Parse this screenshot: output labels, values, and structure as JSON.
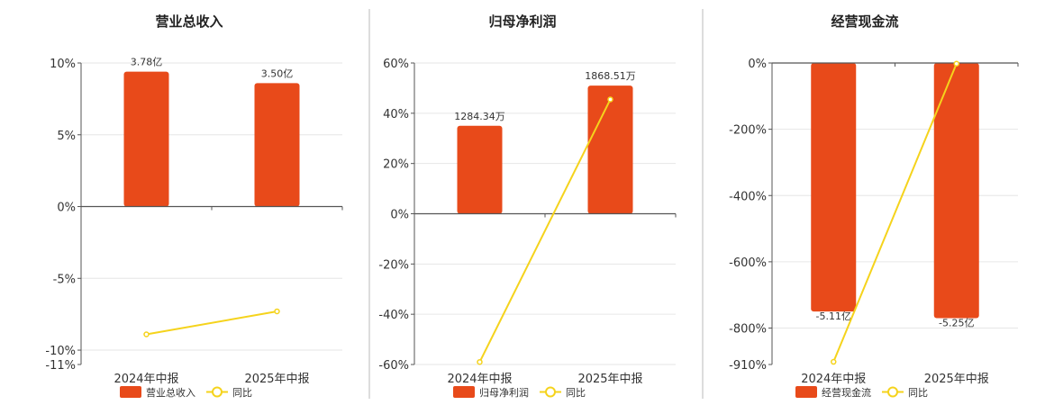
{
  "colors": {
    "bar": "#e84a1a",
    "line": "#f5d31c",
    "grid": "#e6e6e6",
    "axis": "#555555",
    "divider": "#bbbbbb"
  },
  "chart_data": [
    {
      "type": "bar",
      "title": "营业总收入",
      "categories": [
        "2024年中报",
        "2025年中报"
      ],
      "bar_series": {
        "name": "营业总收入",
        "data_labels": [
          "3.78亿",
          "3.50亿"
        ]
      },
      "line_series": {
        "name": "同比",
        "unit": "%",
        "values": [
          -8.9,
          -7.3
        ]
      },
      "y_axis": {
        "ticks": [
          10,
          5,
          0,
          -5,
          -10,
          -11
        ],
        "tick_labels": [
          "10%",
          "5%",
          "0%",
          "-5%",
          "-10%",
          "-11%"
        ],
        "ylim": [
          -11,
          10
        ],
        "gridlines": [
          10,
          5,
          0,
          -5,
          -10
        ]
      },
      "bar_tops": [
        9.4,
        8.6
      ],
      "legend": [
        "营业总收入",
        "同比"
      ],
      "legend_position": "bottom",
      "grid": true
    },
    {
      "type": "bar",
      "title": "归母净利润",
      "categories": [
        "2024年中报",
        "2025年中报"
      ],
      "bar_series": {
        "name": "归母净利润",
        "data_labels": [
          "1284.34万",
          "1868.51万"
        ]
      },
      "line_series": {
        "name": "同比",
        "unit": "%",
        "values": [
          -59,
          45.5
        ]
      },
      "y_axis": {
        "ticks": [
          60,
          40,
          20,
          0,
          -20,
          -40,
          -60
        ],
        "tick_labels": [
          "60%",
          "40%",
          "20%",
          "0%",
          "-20%",
          "-40%",
          "-60%"
        ],
        "ylim": [
          -60,
          60
        ],
        "gridlines": [
          60,
          40,
          20,
          0,
          -20,
          -40,
          -60
        ]
      },
      "bar_tops": [
        35,
        51
      ],
      "legend": [
        "归母净利润",
        "同比"
      ],
      "legend_position": "bottom",
      "grid": true
    },
    {
      "type": "bar",
      "title": "经营现金流",
      "categories": [
        "2024年中报",
        "2025年中报"
      ],
      "bar_series": {
        "name": "经营现金流",
        "data_labels": [
          "-5.11亿",
          "-5.25亿"
        ]
      },
      "line_series": {
        "name": "同比",
        "unit": "%",
        "values": [
          -902,
          -2
        ]
      },
      "y_axis": {
        "ticks": [
          0,
          -200,
          -400,
          -600,
          -800,
          -910
        ],
        "tick_labels": [
          "0%",
          "-200%",
          "-400%",
          "-600%",
          "-800%",
          "-910%"
        ],
        "ylim": [
          -910,
          0
        ],
        "gridlines": [
          0,
          -200,
          -400,
          -600,
          -800
        ]
      },
      "bar_tops": [
        -750,
        -770
      ],
      "legend": [
        "经营现金流",
        "同比"
      ],
      "legend_position": "bottom",
      "grid": true
    }
  ]
}
